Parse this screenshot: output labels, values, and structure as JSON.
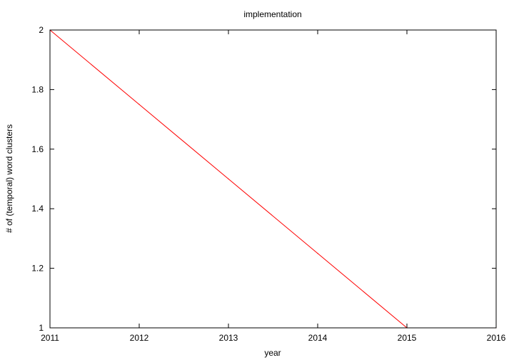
{
  "chart_data": {
    "type": "line",
    "title": "implementation",
    "xlabel": "year",
    "ylabel": "# of (temporal) word clusters",
    "xlim": [
      2011,
      2016
    ],
    "ylim": [
      1,
      2
    ],
    "x_ticks": [
      "2011",
      "2012",
      "2013",
      "2014",
      "2015",
      "2016"
    ],
    "y_ticks": [
      "1",
      "1.2",
      "1.4",
      "1.6",
      "1.8",
      "2"
    ],
    "grid": false,
    "series": [
      {
        "color": "#ff0000",
        "x": [
          2011,
          2012,
          2013,
          2014,
          2015,
          2016
        ],
        "values": [
          2,
          1.75,
          1.5,
          1.25,
          1,
          1
        ]
      }
    ]
  }
}
